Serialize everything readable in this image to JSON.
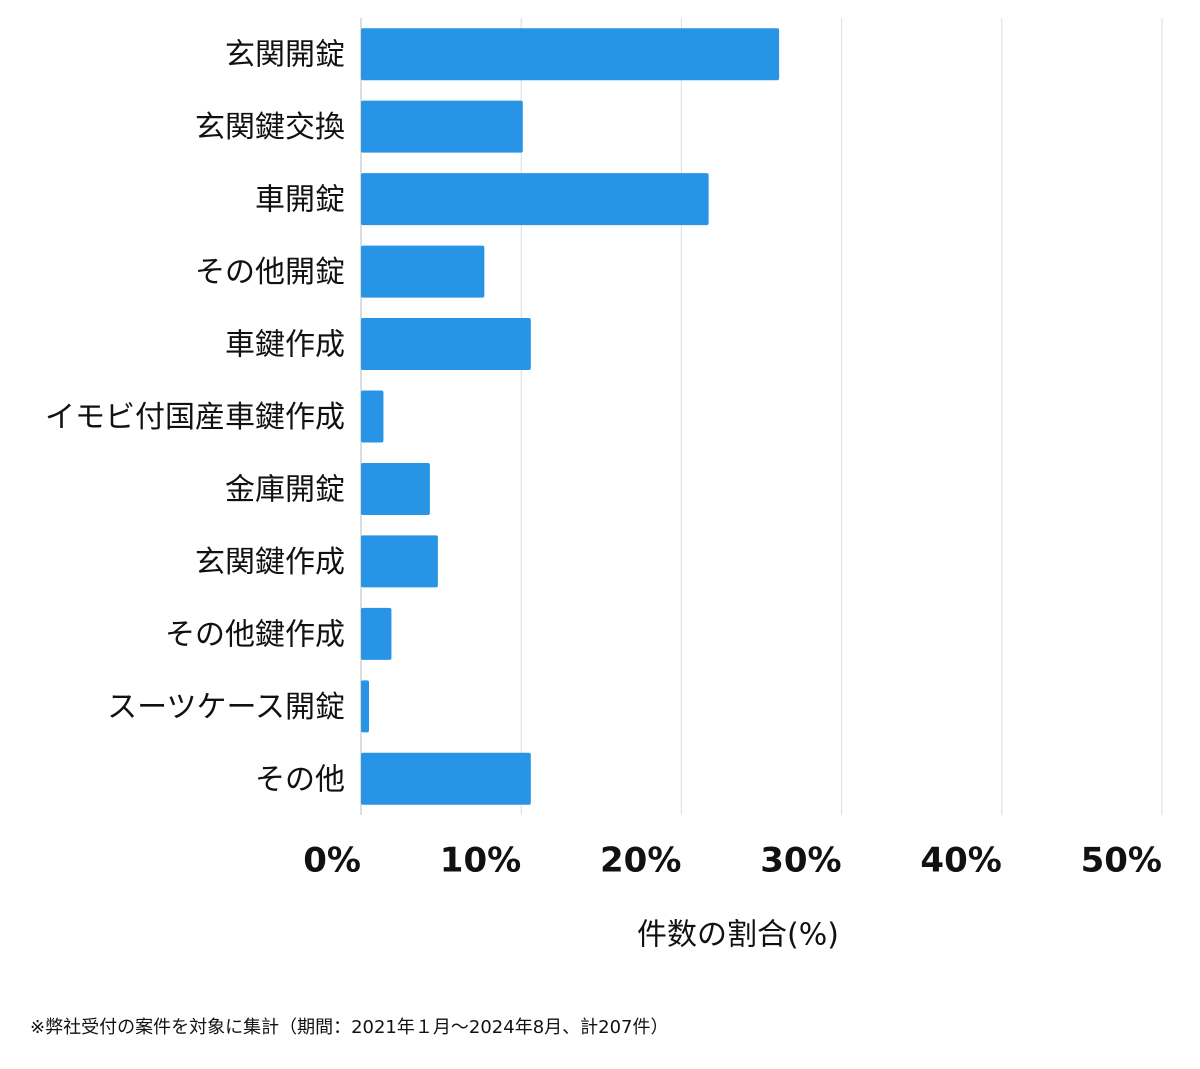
{
  "chart_data": {
    "type": "barh",
    "x_label": "件数の割合(%)",
    "categories": [
      "玄関開錠",
      "玄関鍵交換",
      "車開錠",
      "その他開錠",
      "車鍵作成",
      "イモビ付国産車鍵作成",
      "金庫開錠",
      "玄関鍵作成",
      "その他鍵作成",
      "スーツケース開錠",
      "その他"
    ],
    "values": [
      26.1,
      10.1,
      21.7,
      7.7,
      10.6,
      1.4,
      4.3,
      4.8,
      1.9,
      0.5,
      10.6
    ],
    "color": "#2794e6",
    "xlim": [
      0,
      50
    ],
    "xticks": [
      {
        "value": 0,
        "label": "0%"
      },
      {
        "value": 10,
        "label": "10%"
      },
      {
        "value": 20,
        "label": "20%"
      },
      {
        "value": 30,
        "label": "30%"
      },
      {
        "value": 40,
        "label": "40%"
      },
      {
        "value": 50,
        "label": "50%"
      }
    ],
    "grid": true
  },
  "footnote": "※弊社受付の案件を対象に集計（期間：2021年１月〜2024年8月、計207件）"
}
